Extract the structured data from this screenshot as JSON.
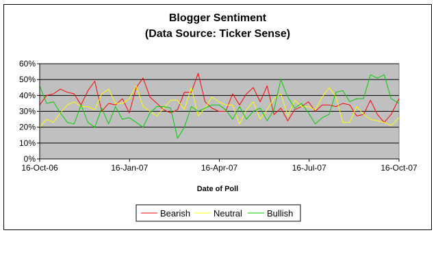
{
  "chart_data": {
    "type": "line",
    "title": "Blogger Sentiment",
    "subtitle": "(Data Source:  Ticker Sense)",
    "xlabel": "Date of Poll",
    "ylabel": "",
    "x_tick_labels": [
      "16-Oct-06",
      "16-Jan-07",
      "16-Apr-07",
      "16-Jul-07",
      "16-Oct-07"
    ],
    "x_range": [
      "2006-10-16",
      "2007-10-16"
    ],
    "y_tick_labels": [
      "0%",
      "10%",
      "20%",
      "30%",
      "40%",
      "50%",
      "60%"
    ],
    "ylim": [
      0,
      60
    ],
    "y_unit": "%",
    "grid": "horizontal",
    "plot_background": "#c0c0c0",
    "legend_position": "bottom",
    "x": [
      "2006-10-16",
      "2006-10-23",
      "2006-10-30",
      "2006-11-06",
      "2006-11-13",
      "2006-11-20",
      "2006-11-27",
      "2006-12-04",
      "2006-12-11",
      "2006-12-18",
      "2006-12-25",
      "2007-01-01",
      "2007-01-08",
      "2007-01-15",
      "2007-01-22",
      "2007-01-29",
      "2007-02-05",
      "2007-02-12",
      "2007-02-19",
      "2007-02-26",
      "2007-03-05",
      "2007-03-12",
      "2007-03-19",
      "2007-03-26",
      "2007-04-02",
      "2007-04-09",
      "2007-04-16",
      "2007-04-23",
      "2007-04-30",
      "2007-05-07",
      "2007-05-14",
      "2007-05-21",
      "2007-05-28",
      "2007-06-04",
      "2007-06-11",
      "2007-06-18",
      "2007-06-25",
      "2007-07-02",
      "2007-07-09",
      "2007-07-16",
      "2007-07-23",
      "2007-07-30",
      "2007-08-06",
      "2007-08-13",
      "2007-08-20",
      "2007-08-27",
      "2007-09-03",
      "2007-09-10",
      "2007-09-17",
      "2007-09-24",
      "2007-10-01",
      "2007-10-08",
      "2007-10-16"
    ],
    "series": [
      {
        "name": "Bearish",
        "color": "#ff0000",
        "values": [
          34,
          40,
          41,
          44,
          42,
          41,
          34,
          43,
          49,
          30,
          35,
          34,
          38,
          29,
          45,
          51,
          39,
          35,
          31,
          29,
          31,
          42,
          42,
          54,
          36,
          32,
          30,
          30,
          41,
          34,
          41,
          45,
          36,
          46,
          28,
          32,
          24,
          31,
          33,
          36,
          30,
          34,
          34,
          33,
          35,
          34,
          27,
          28,
          37,
          28,
          23,
          28,
          38
        ]
      },
      {
        "name": "Neutral",
        "color": "#ffff00",
        "values": [
          20,
          25,
          23,
          29,
          34,
          36,
          33,
          33,
          31,
          41,
          44,
          35,
          35,
          38,
          46,
          33,
          30,
          27,
          32,
          37,
          37,
          31,
          45,
          27,
          32,
          39,
          36,
          34,
          34,
          22,
          31,
          36,
          25,
          31,
          38,
          41,
          27,
          37,
          33,
          33,
          31,
          39,
          45,
          39,
          23,
          23,
          33,
          28,
          25,
          24,
          23,
          21,
          26
        ]
      },
      {
        "name": "Bullish",
        "color": "#00cc00",
        "values": [
          46,
          35,
          36,
          29,
          23,
          22,
          34,
          23,
          20,
          32,
          22,
          33,
          25,
          26,
          23,
          20,
          29,
          33,
          33,
          32,
          13,
          20,
          33,
          30,
          32,
          34,
          34,
          31,
          25,
          33,
          25,
          30,
          32,
          24,
          31,
          50,
          39,
          32,
          35,
          29,
          22,
          26,
          28,
          42,
          43,
          36,
          38,
          38,
          53,
          51,
          53,
          38,
          35
        ]
      }
    ]
  }
}
